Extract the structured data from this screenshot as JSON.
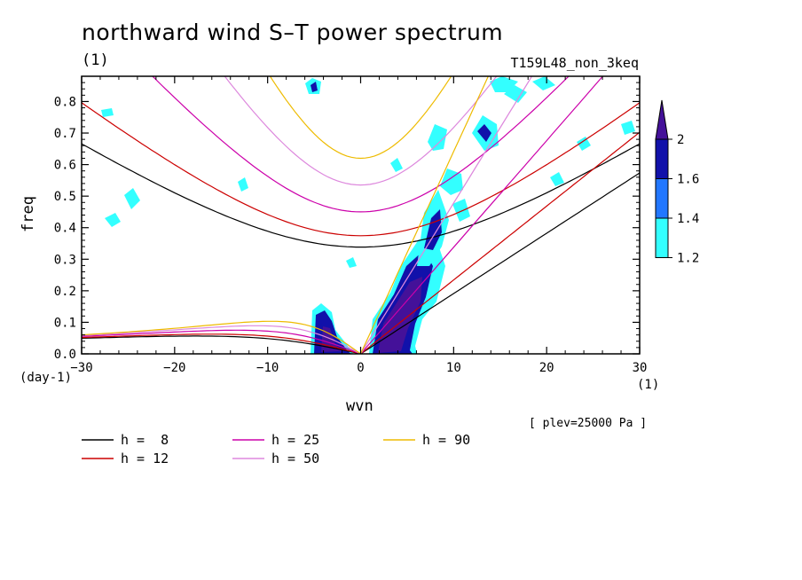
{
  "title": "northward wind S–T power spectrum",
  "units_top": "(1)",
  "run_label": "T159L48_non_3keq",
  "plev_label": "[ plev=25000 Pa ]",
  "chart_data": {
    "type": "heatmap",
    "title": "northward wind S–T power spectrum",
    "xlabel": "wvn",
    "ylabel": "freq",
    "x_unit": "(1)",
    "y_unit": "(day-1)",
    "xlim": [
      -30,
      30
    ],
    "ylim": [
      0,
      0.88
    ],
    "xticks": [
      -30,
      -20,
      -10,
      0,
      10,
      20,
      30
    ],
    "yticks": [
      0.0,
      0.1,
      0.2,
      0.3,
      0.4,
      0.5,
      0.6,
      0.7,
      0.8
    ],
    "colorbar": {
      "levels": [
        "1.2",
        "1.4",
        "1.6",
        "2"
      ],
      "colors": [
        "#33ffff",
        "#2277ff",
        "#1111aa",
        "#441199"
      ]
    },
    "dispersion_curves": [
      {
        "label": "h =  8",
        "h": 8,
        "color": "#000000"
      },
      {
        "label": "h = 12",
        "h": 12,
        "color": "#cc0000"
      },
      {
        "label": "h = 25",
        "h": 25,
        "color": "#cc00aa"
      },
      {
        "label": "h = 50",
        "h": 50,
        "color": "#dd88dd"
      },
      {
        "label": "h = 90",
        "h": 90,
        "color": "#eebb00"
      }
    ]
  }
}
